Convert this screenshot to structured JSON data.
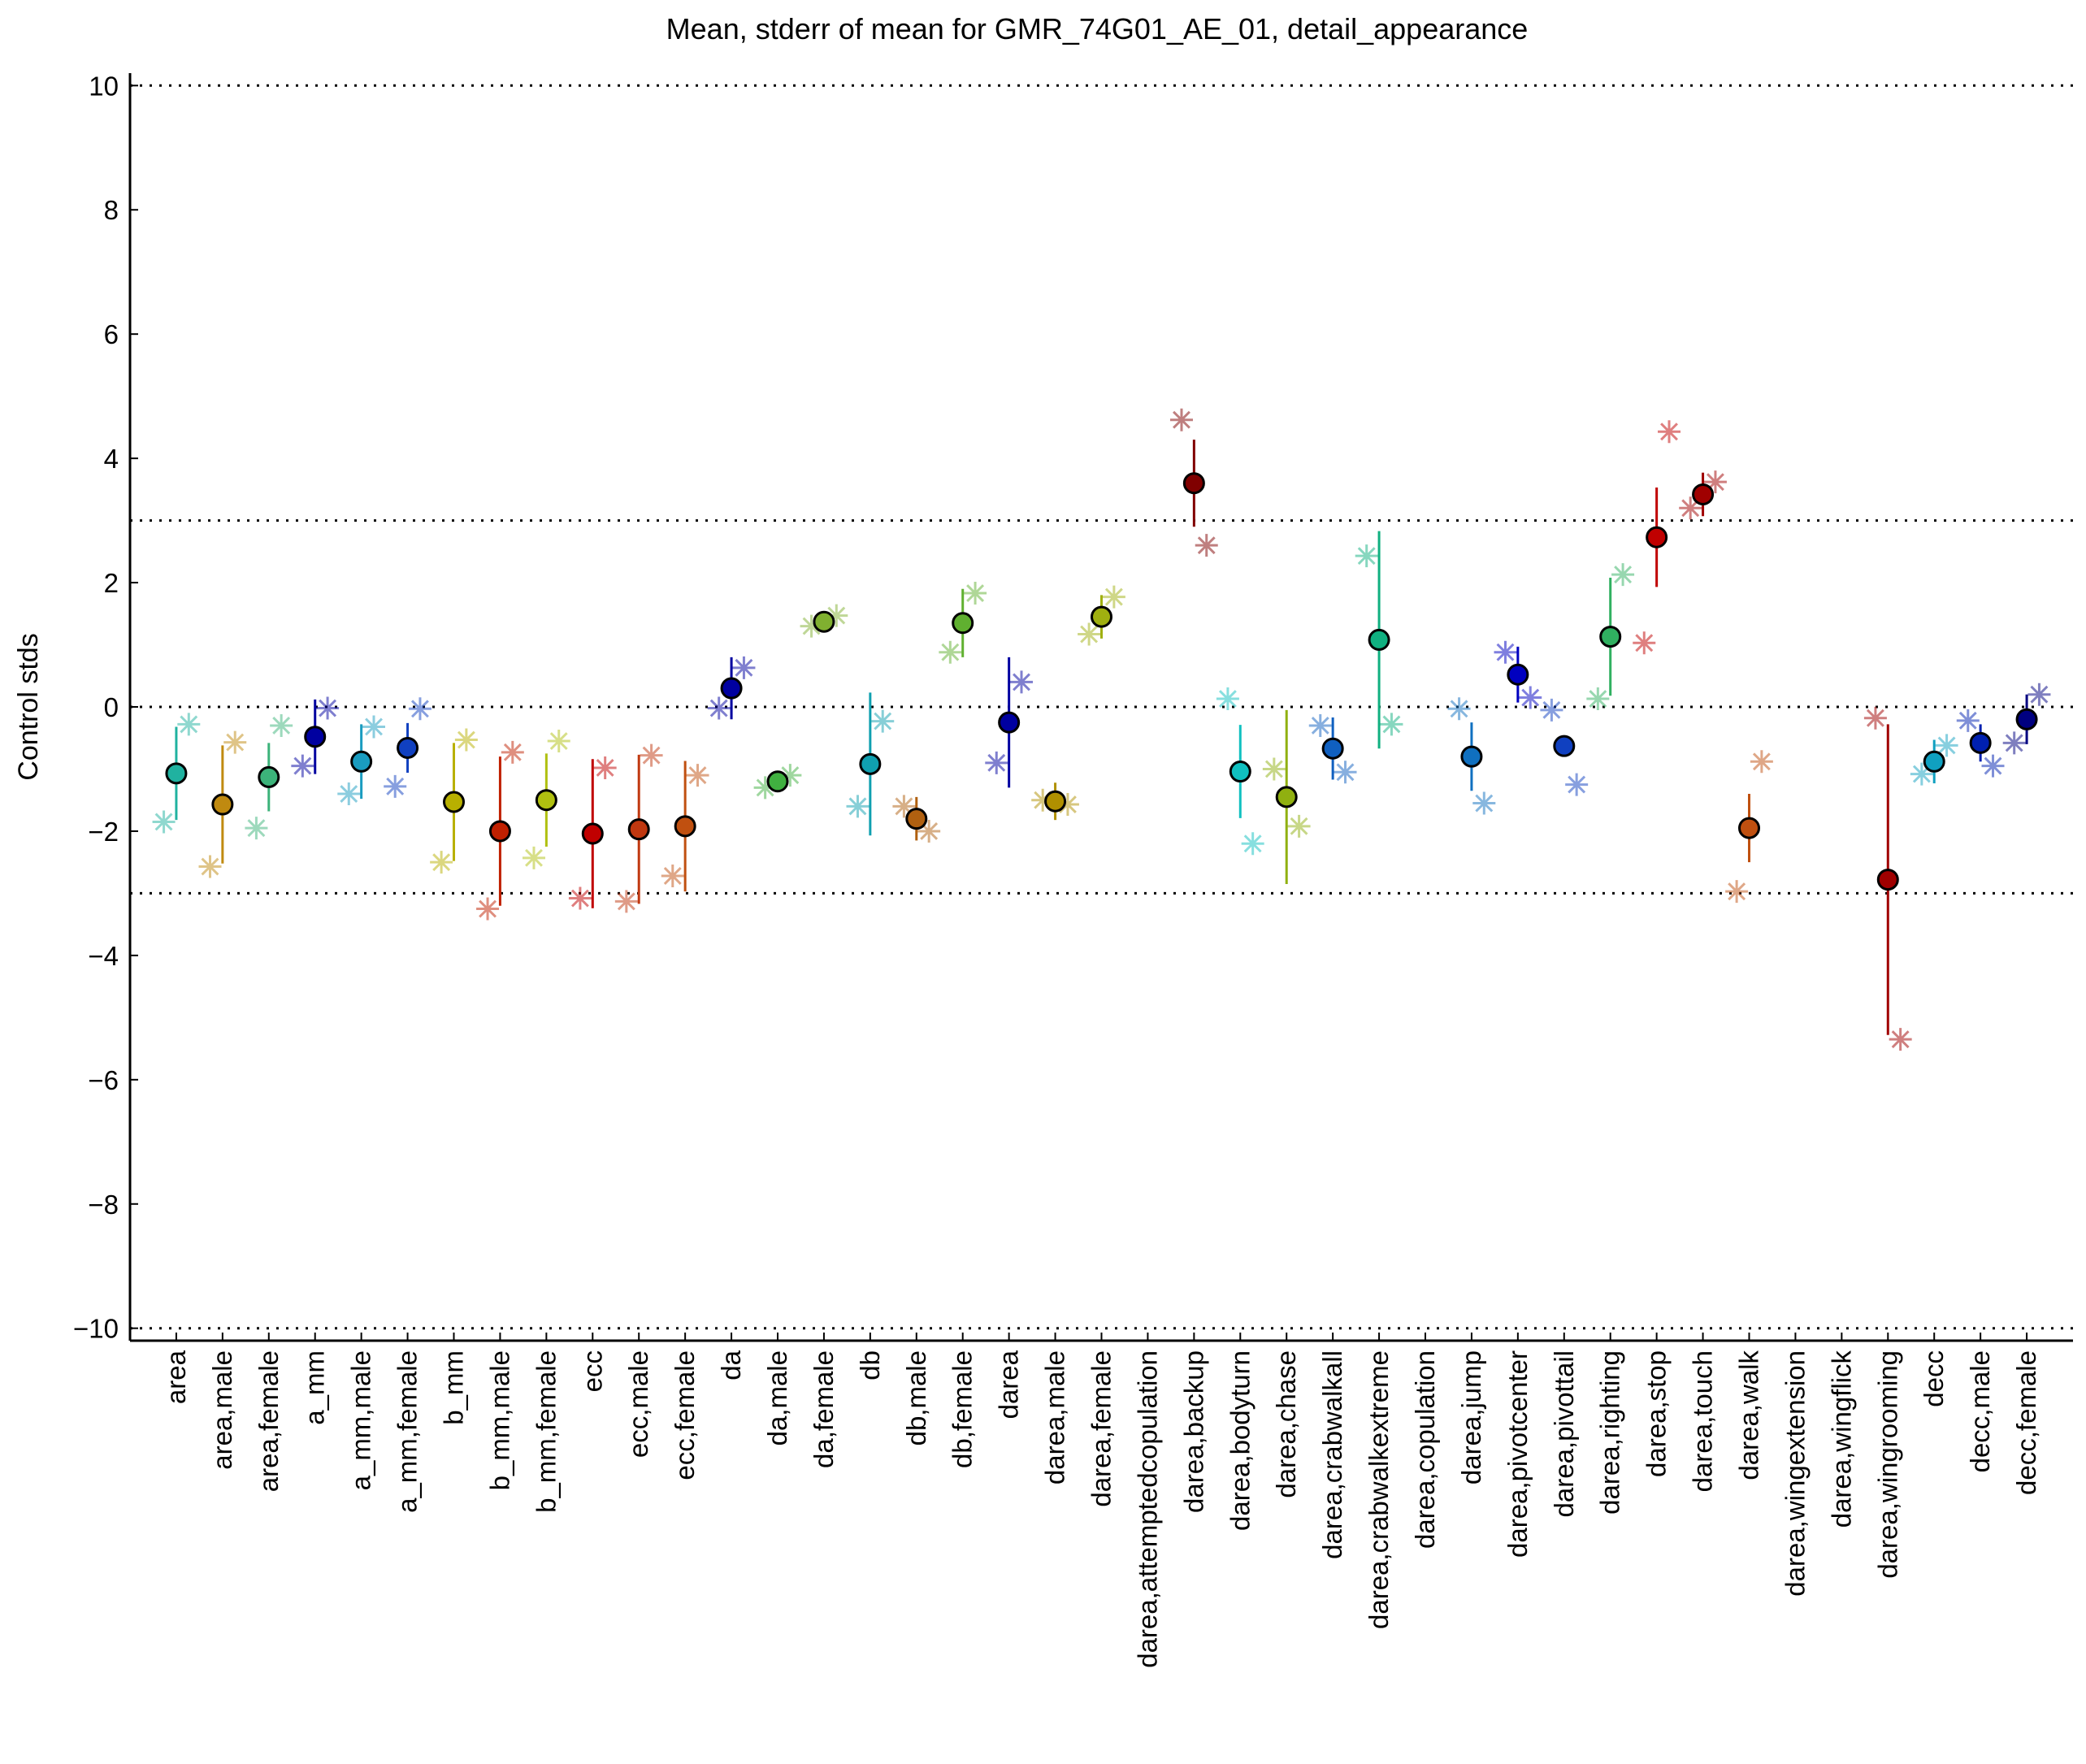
{
  "chart_data": {
    "type": "errorbar",
    "title": "Mean, stderr of mean for GMR_74G01_AE_01, detail_appearance",
    "y_label": "Control stds",
    "categories": [
      "area",
      "area,male",
      "area,female",
      "a_mm",
      "a_mm,male",
      "a_mm,female",
      "b_mm",
      "b_mm,male",
      "b_mm,female",
      "ecc",
      "ecc,male",
      "ecc,female",
      "da",
      "da,male",
      "da,female",
      "db",
      "db,male",
      "db,female",
      "darea",
      "darea,male",
      "darea,female",
      "darea,attemptedcopulation",
      "darea,backup",
      "darea,bodyturn",
      "darea,chase",
      "darea,crabwalkall",
      "darea,crabwalkextreme",
      "darea,copulation",
      "darea,jump",
      "darea,pivotcenter",
      "darea,pivottail",
      "darea,righting",
      "darea,stop",
      "darea,touch",
      "darea,walk",
      "darea,wingextension",
      "darea,wingflick",
      "darea,wingrooming",
      "decc",
      "decc,male",
      "decc,female"
    ],
    "colors": [
      "#20b2a0",
      "#c08a10",
      "#3cb37a",
      "#0000a0",
      "#1a9cc0",
      "#1040c0",
      "#b8b000",
      "#c02000",
      "#b0c010",
      "#c00000",
      "#c03810",
      "#c05010",
      "#0000a0",
      "#40b040",
      "#80b030",
      "#10a0b0",
      "#b06010",
      "#60b030",
      "#0000a0",
      "#b09000",
      "#a0b010",
      "#888888",
      "#800000",
      "#10c0c0",
      "#90b010",
      "#1060c0",
      "#10b080",
      "#888888",
      "#1070c0",
      "#0000c0",
      "#1040c0",
      "#30b060",
      "#c00000",
      "#a00000",
      "#c05010",
      "#888888",
      "#888888",
      "#a00000",
      "#10a0c0",
      "#0020b0",
      "#000080"
    ],
    "values": [
      -1.07,
      -1.57,
      -1.13,
      -0.48,
      -0.88,
      -0.66,
      -1.53,
      -2.0,
      -1.5,
      -2.04,
      -1.97,
      -1.92,
      0.3,
      -1.2,
      1.37,
      -0.92,
      -1.8,
      1.35,
      -0.25,
      -1.52,
      1.45,
      null,
      3.6,
      -1.04,
      -1.45,
      -0.67,
      1.08,
      null,
      -0.8,
      0.52,
      -0.63,
      1.13,
      2.73,
      3.42,
      -1.95,
      null,
      null,
      -2.78,
      -0.88,
      -0.58,
      -0.2
    ],
    "errors": [
      0.75,
      0.95,
      0.55,
      0.6,
      0.6,
      0.4,
      0.95,
      1.2,
      0.75,
      1.2,
      1.2,
      1.05,
      0.5,
      0.15,
      0.1,
      1.15,
      0.35,
      0.55,
      1.05,
      0.3,
      0.35,
      null,
      0.7,
      0.75,
      1.4,
      0.5,
      1.75,
      null,
      0.55,
      0.45,
      0.05,
      0.95,
      0.8,
      0.35,
      0.55,
      null,
      null,
      2.5,
      0.35,
      0.3,
      0.4
    ],
    "side_values": [
      [
        -1.85,
        -0.28
      ],
      [
        -2.57,
        -0.57
      ],
      [
        -1.95,
        -0.3
      ],
      [
        -0.95,
        -0.02
      ],
      [
        -1.4,
        -0.32
      ],
      [
        -1.28,
        -0.03
      ],
      [
        -2.5,
        -0.53
      ],
      [
        -3.25,
        -0.73
      ],
      [
        -2.43,
        -0.55
      ],
      [
        -3.08,
        -0.98
      ],
      [
        -3.13,
        -0.78
      ],
      [
        -2.72,
        -1.1
      ],
      [
        -0.02,
        0.63
      ],
      [
        -1.3,
        -1.1
      ],
      [
        1.3,
        1.47
      ],
      [
        -1.6,
        -0.23
      ],
      [
        -1.6,
        -2.0
      ],
      [
        0.88,
        1.83
      ],
      [
        -0.9,
        0.4
      ],
      [
        -1.5,
        -1.57
      ],
      [
        1.17,
        1.77
      ],
      [
        null,
        null
      ],
      [
        4.62,
        2.6
      ],
      [
        0.13,
        -2.2
      ],
      [
        -1.0,
        -1.92
      ],
      [
        -0.3,
        -1.05
      ],
      [
        2.43,
        -0.28
      ],
      [
        null,
        null
      ],
      [
        -0.03,
        -1.55
      ],
      [
        0.88,
        0.15
      ],
      [
        -0.05,
        -1.25
      ],
      [
        0.13,
        2.13
      ],
      [
        1.03,
        4.43
      ],
      [
        3.2,
        3.62
      ],
      [
        -2.97,
        -0.88
      ],
      [
        null,
        null
      ],
      [
        null,
        null
      ],
      [
        -0.18,
        -5.35
      ],
      [
        -1.08,
        -0.62
      ],
      [
        -0.22,
        -0.95
      ],
      [
        -0.58,
        0.2
      ]
    ],
    "xlim": [
      0,
      42
    ],
    "ylim": [
      -10.2,
      10.2
    ],
    "yticks": [
      -10,
      -8,
      -6,
      -4,
      -2,
      0,
      2,
      4,
      6,
      8,
      10
    ],
    "hlines": [
      10,
      3,
      0,
      -3,
      -10
    ]
  }
}
